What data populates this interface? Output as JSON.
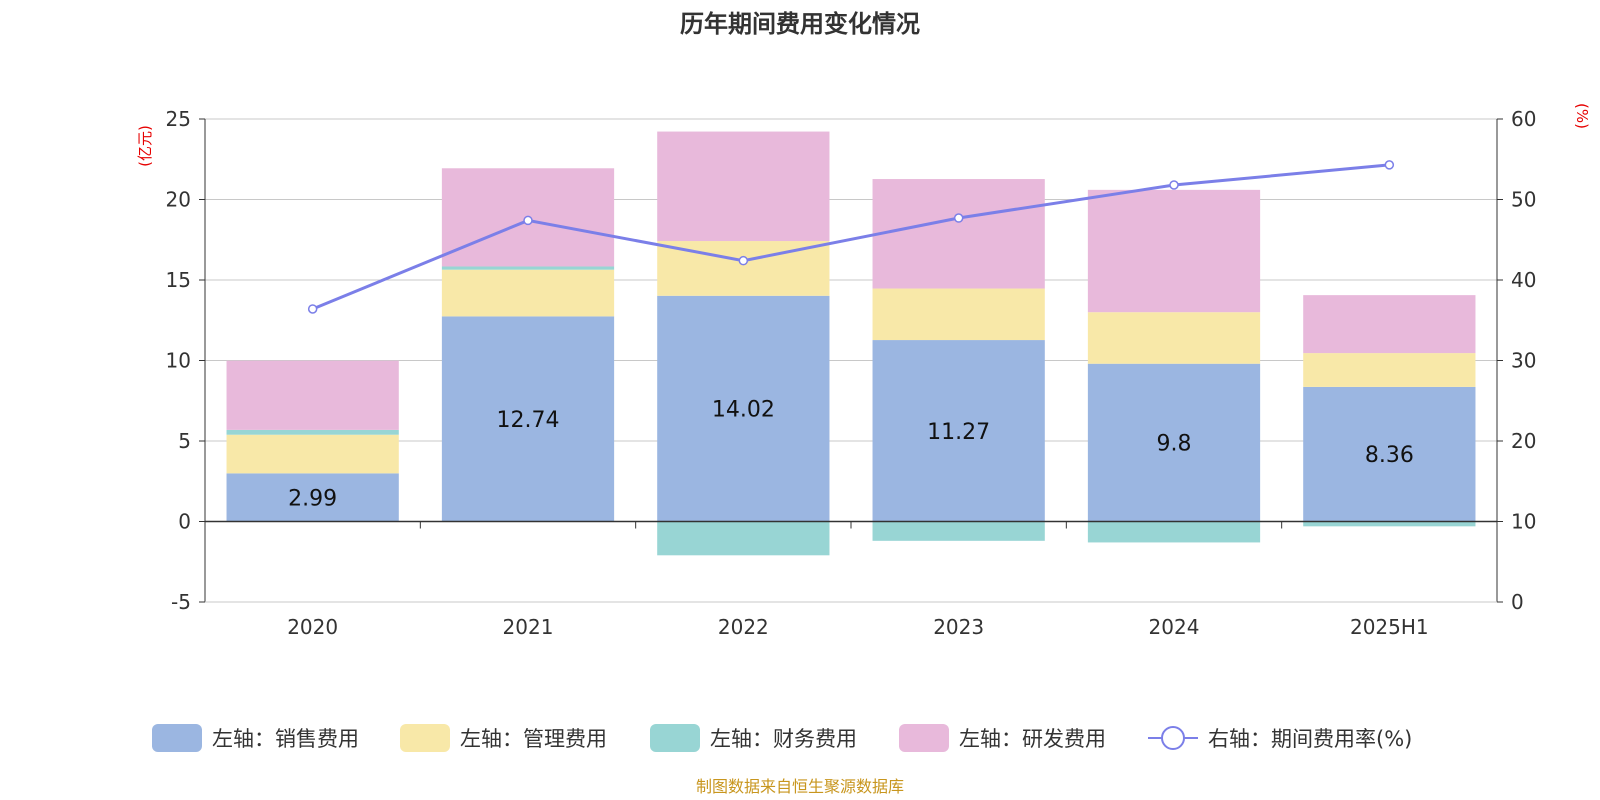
{
  "chart_data": {
    "type": "bar",
    "title": "历年期间费用变化情况",
    "categories": [
      "2020",
      "2021",
      "2022",
      "2023",
      "2024",
      "2025H1"
    ],
    "left_axis": {
      "unit": "(亿元)",
      "min": -5,
      "max": 25,
      "ticks": [
        -5,
        0,
        5,
        10,
        15,
        20,
        25
      ]
    },
    "right_axis": {
      "unit": "(%)",
      "min": 0,
      "max": 60,
      "ticks": [
        0,
        10,
        20,
        30,
        40,
        50,
        60
      ]
    },
    "stacked": true,
    "grid": true,
    "legend_position": "bottom",
    "series": [
      {
        "name": "左轴：销售费用",
        "axis": "left",
        "color": "#9bb6e1",
        "values": [
          2.99,
          12.74,
          14.02,
          11.27,
          9.8,
          8.36
        ],
        "labels": [
          "2.99",
          "12.74",
          "14.02",
          "11.27",
          "9.8",
          "8.36"
        ]
      },
      {
        "name": "左轴：管理费用",
        "axis": "left",
        "color": "#f8e8a8",
        "values": [
          2.4,
          2.9,
          3.4,
          3.2,
          3.2,
          2.1
        ]
      },
      {
        "name": "左轴：财务费用",
        "axis": "left",
        "color": "#98d5d4",
        "values": [
          0.3,
          0.2,
          -2.1,
          -1.2,
          -1.3,
          -0.3
        ]
      },
      {
        "name": "左轴：研发费用",
        "axis": "left",
        "color": "#e8b9db",
        "values": [
          4.3,
          6.1,
          6.8,
          6.8,
          7.6,
          3.6
        ]
      }
    ],
    "line_series": {
      "name": "右轴：期间费用率(%)",
      "axis": "right",
      "color": "#7b7fe8",
      "values": [
        36.4,
        47.4,
        42.4,
        47.7,
        51.8,
        54.3
      ]
    },
    "source": "制图数据来自恒生聚源数据库"
  }
}
